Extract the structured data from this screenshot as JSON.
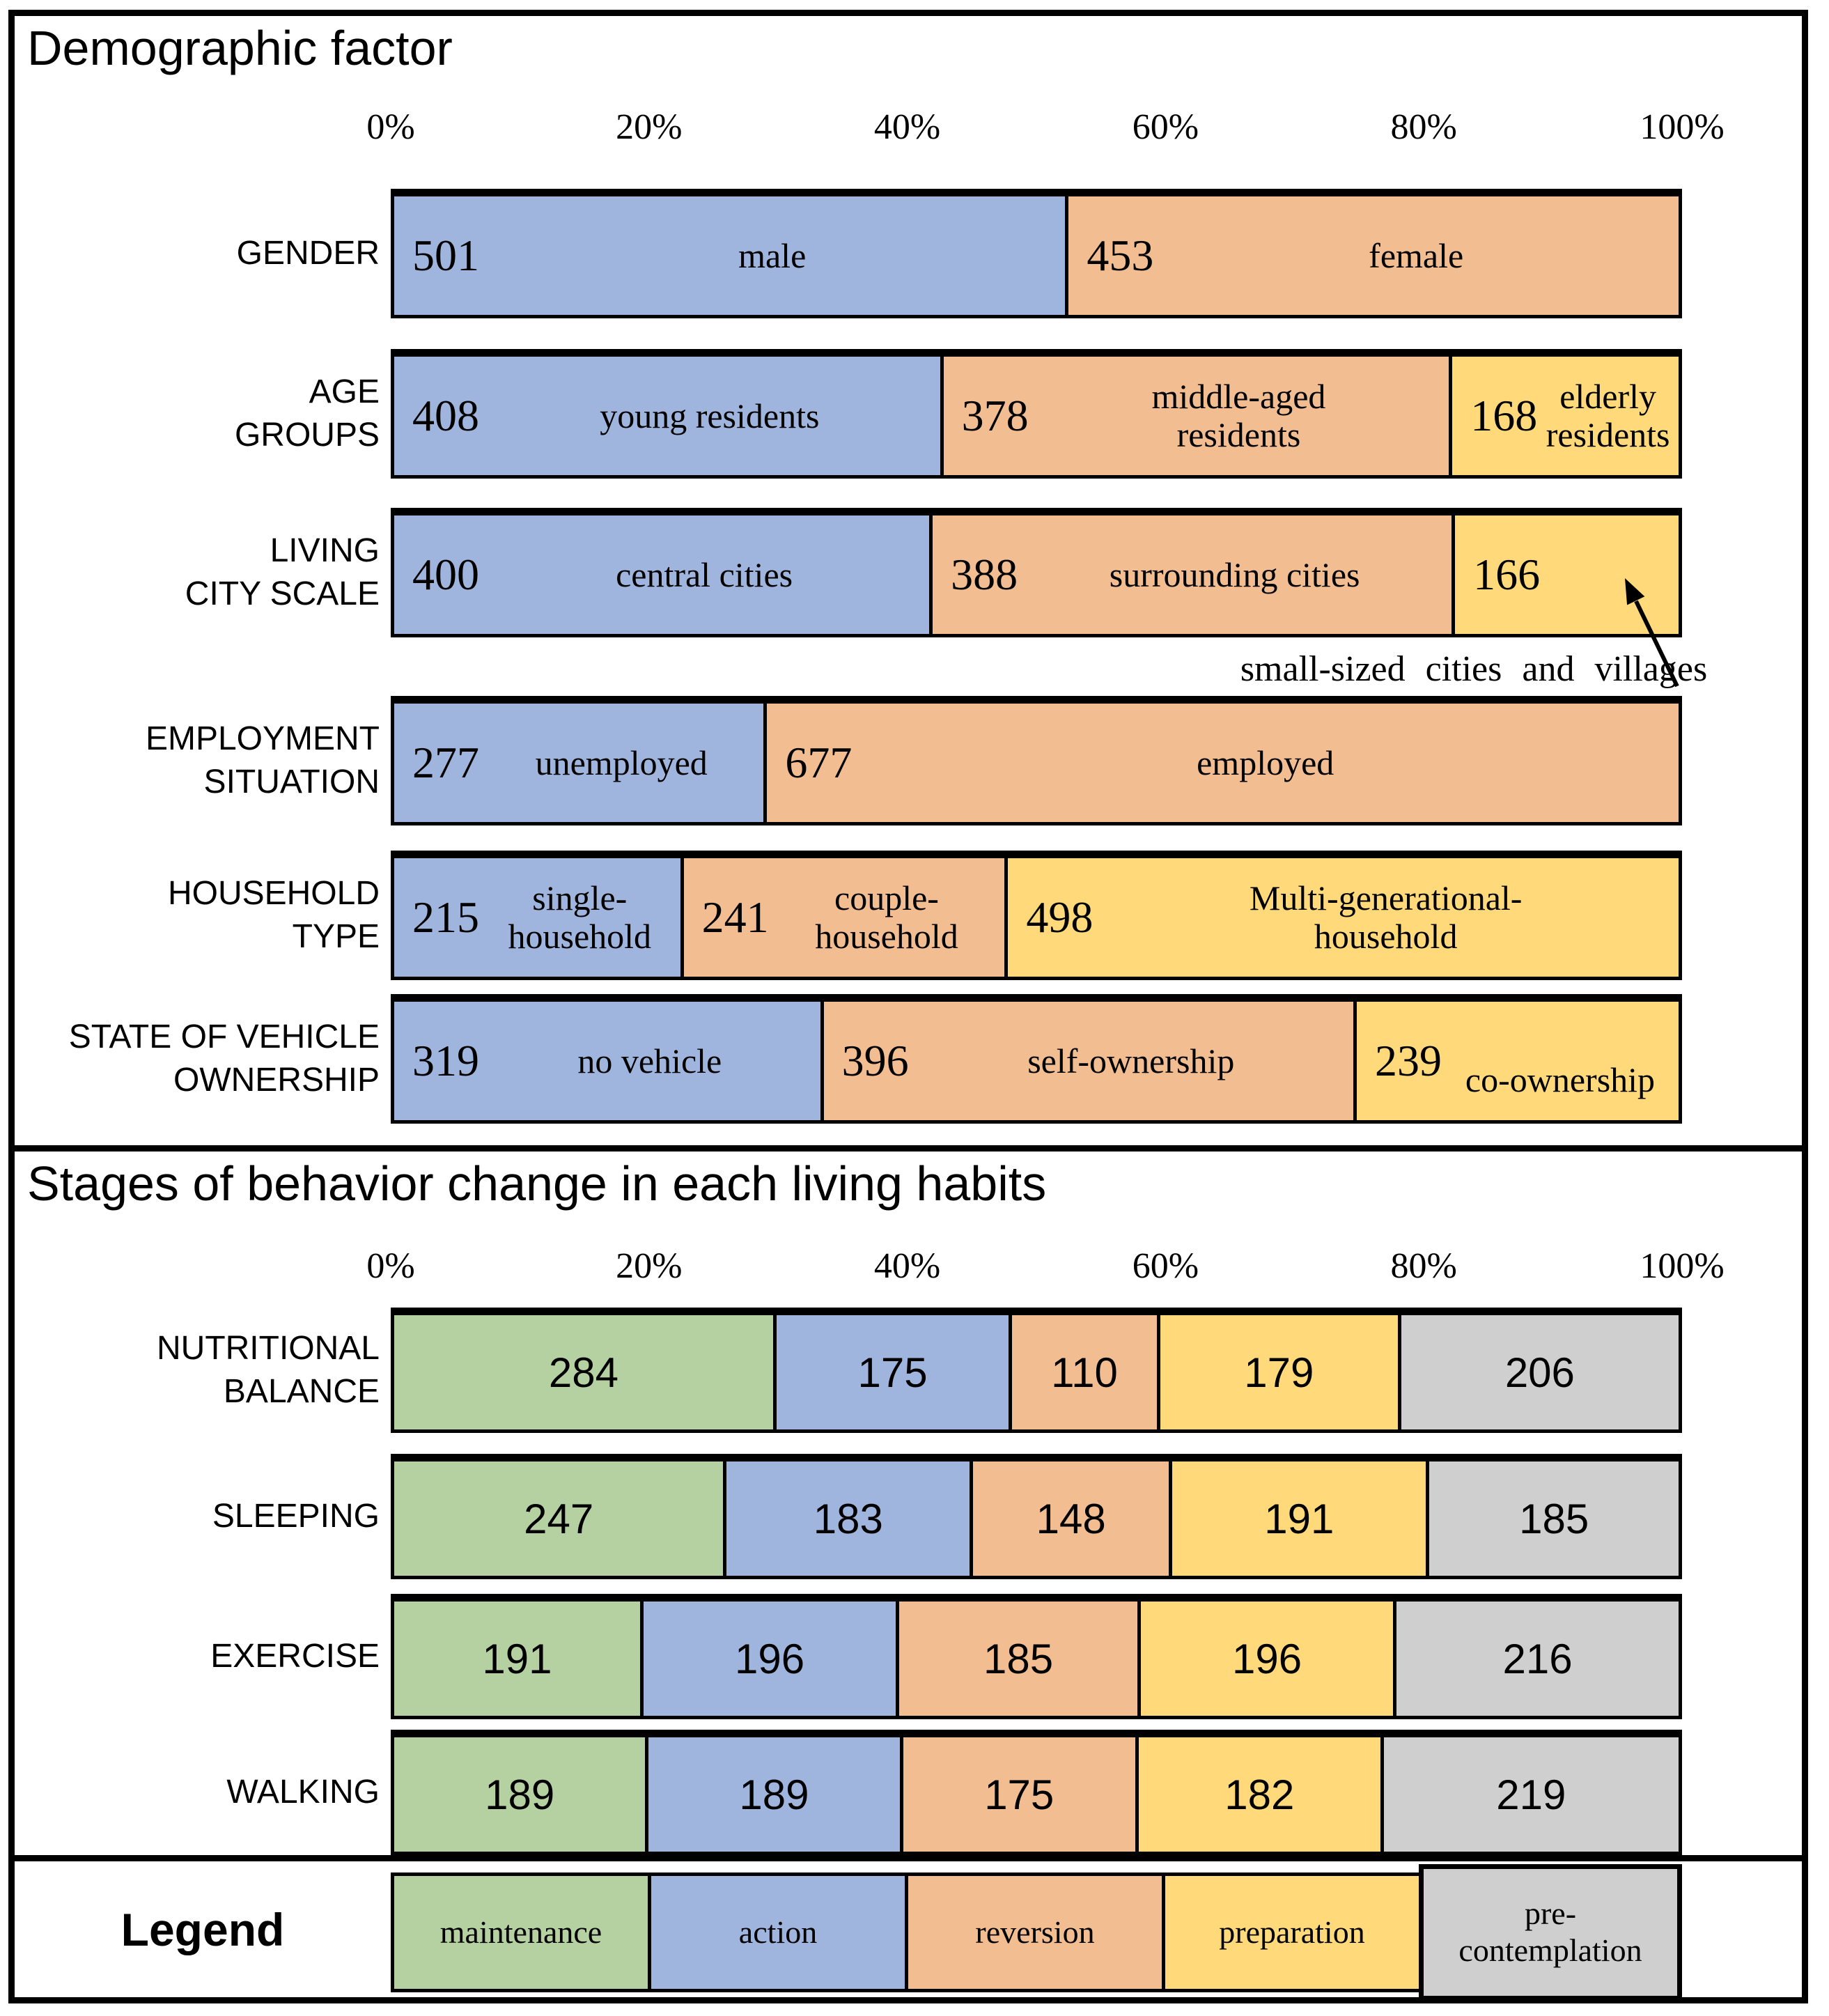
{
  "colors": {
    "blue": "#9FB5DE",
    "orange": "#F3BD92",
    "yellow": "#FFD97A",
    "green": "#B5D1A1",
    "gray": "#CFCFCF",
    "border": "#000000"
  },
  "legend": {
    "title": "Legend",
    "items": [
      {
        "label": "maintenance",
        "color": "green"
      },
      {
        "label": "action",
        "color": "blue"
      },
      {
        "label": "reversion",
        "color": "orange"
      },
      {
        "label": "preparation",
        "color": "yellow"
      },
      {
        "label": "pre-\ncontemplation",
        "color": "gray"
      }
    ]
  },
  "chart_data": [
    {
      "type": "bar",
      "stacked": true,
      "orientation": "horizontal",
      "title": "Demographic factor",
      "x_axis": {
        "ticks": [
          "0%",
          "20%",
          "40%",
          "60%",
          "80%",
          "100%"
        ],
        "range": [
          0,
          100
        ]
      },
      "annotation": "small-sized cities and villages",
      "categories": [
        "GENDER",
        "AGE GROUPS",
        "LIVING CITY SCALE",
        "EMPLOYMENT SITUATION",
        "HOUSEHOLD TYPE",
        "STATE OF VEHICLE OWNERSHIP"
      ],
      "rows": [
        {
          "label": "GENDER",
          "segments": [
            {
              "value": 501,
              "text": "male",
              "color": "blue"
            },
            {
              "value": 453,
              "text": "female",
              "color": "orange"
            }
          ]
        },
        {
          "label": "AGE\nGROUPS",
          "segments": [
            {
              "value": 408,
              "text": "young residents",
              "color": "blue"
            },
            {
              "value": 378,
              "text": "middle-aged\nresidents",
              "color": "orange"
            },
            {
              "value": 168,
              "text": "elderly\nresidents",
              "color": "yellow"
            }
          ]
        },
        {
          "label": "LIVING\nCITY SCALE",
          "segments": [
            {
              "value": 400,
              "text": "central cities",
              "color": "blue"
            },
            {
              "value": 388,
              "text": "surrounding cities",
              "color": "orange"
            },
            {
              "value": 166,
              "text": "",
              "color": "yellow"
            }
          ]
        },
        {
          "label": "EMPLOYMENT\nSITUATION",
          "segments": [
            {
              "value": 277,
              "text": "unemployed",
              "color": "blue"
            },
            {
              "value": 677,
              "text": "employed",
              "color": "orange"
            }
          ]
        },
        {
          "label": "HOUSEHOLD\nTYPE",
          "segments": [
            {
              "value": 215,
              "text": "single-\nhousehold",
              "color": "blue"
            },
            {
              "value": 241,
              "text": "couple-\nhousehold",
              "color": "orange"
            },
            {
              "value": 498,
              "text": "Multi-generational-\nhousehold",
              "color": "yellow"
            }
          ]
        },
        {
          "label": "STATE OF VEHICLE\nOWNERSHIP",
          "segments": [
            {
              "value": 319,
              "text": "no vehicle",
              "color": "blue"
            },
            {
              "value": 396,
              "text": "self-ownership",
              "color": "orange"
            },
            {
              "value": 239,
              "text": "\nco-ownership",
              "color": "yellow"
            }
          ]
        }
      ]
    },
    {
      "type": "bar",
      "stacked": true,
      "orientation": "horizontal",
      "title": "Stages of behavior change in each living habits",
      "x_axis": {
        "ticks": [
          "0%",
          "20%",
          "40%",
          "60%",
          "80%",
          "100%"
        ],
        "range": [
          0,
          100
        ]
      },
      "series_legend": [
        "maintenance",
        "action",
        "reversion",
        "preparation",
        "pre-contemplation"
      ],
      "rows": [
        {
          "label": "NUTRITIONAL\nBALANCE",
          "segments": [
            {
              "value": 284,
              "color": "green"
            },
            {
              "value": 175,
              "color": "blue"
            },
            {
              "value": 110,
              "color": "orange"
            },
            {
              "value": 179,
              "color": "yellow"
            },
            {
              "value": 206,
              "color": "gray"
            }
          ]
        },
        {
          "label": "SLEEPING",
          "segments": [
            {
              "value": 247,
              "color": "green"
            },
            {
              "value": 183,
              "color": "blue"
            },
            {
              "value": 148,
              "color": "orange"
            },
            {
              "value": 191,
              "color": "yellow"
            },
            {
              "value": 185,
              "color": "gray"
            }
          ]
        },
        {
          "label": "EXERCISE",
          "segments": [
            {
              "value": 191,
              "color": "green"
            },
            {
              "value": 196,
              "color": "blue"
            },
            {
              "value": 185,
              "color": "orange"
            },
            {
              "value": 196,
              "color": "yellow"
            },
            {
              "value": 216,
              "color": "gray"
            }
          ]
        },
        {
          "label": "WALKING",
          "segments": [
            {
              "value": 189,
              "color": "green"
            },
            {
              "value": 189,
              "color": "blue"
            },
            {
              "value": 175,
              "color": "orange"
            },
            {
              "value": 182,
              "color": "yellow"
            },
            {
              "value": 219,
              "color": "gray"
            }
          ]
        }
      ]
    }
  ]
}
